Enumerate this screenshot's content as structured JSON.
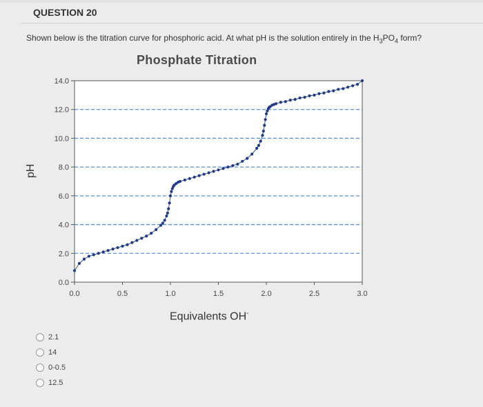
{
  "question": {
    "title": "QUESTION 20",
    "text_before": "Shown below is the titration curve for phosphoric acid. At what pH is the solution entirely in the H",
    "sub1": "3",
    "mid": "PO",
    "sub2": "4",
    "text_after": " form?"
  },
  "chart_data": {
    "type": "scatter",
    "title": "Phosphate Titration",
    "xlabel": "Equivalents OH",
    "ylabel": "pH",
    "xlim": [
      0,
      3
    ],
    "ylim": [
      0,
      14
    ],
    "xticks": [
      "0.0",
      "0.5",
      "1.0",
      "1.5",
      "2.0",
      "2.5",
      "3.0"
    ],
    "yticks": [
      "0.0",
      "2.0",
      "4.0",
      "6.0",
      "8.0",
      "10.0",
      "12.0",
      "14.0"
    ],
    "grid": "horizontal dashed",
    "series": [
      {
        "color": "#1f3a8a",
        "x": [
          0.0,
          0.05,
          0.1,
          0.15,
          0.2,
          0.25,
          0.3,
          0.35,
          0.4,
          0.45,
          0.5,
          0.55,
          0.6,
          0.65,
          0.7,
          0.75,
          0.8,
          0.85,
          0.9,
          0.92,
          0.94,
          0.96,
          0.97,
          0.98,
          0.99,
          1.0,
          1.01,
          1.02,
          1.03,
          1.04,
          1.06,
          1.08,
          1.1,
          1.15,
          1.2,
          1.25,
          1.3,
          1.35,
          1.4,
          1.45,
          1.5,
          1.55,
          1.6,
          1.65,
          1.7,
          1.75,
          1.8,
          1.85,
          1.9,
          1.92,
          1.94,
          1.96,
          1.97,
          1.98,
          1.99,
          2.0,
          2.01,
          2.02,
          2.03,
          2.04,
          2.06,
          2.08,
          2.1,
          2.15,
          2.2,
          2.25,
          2.3,
          2.35,
          2.4,
          2.45,
          2.5,
          2.55,
          2.6,
          2.65,
          2.7,
          2.75,
          2.8,
          2.85,
          2.9,
          2.95,
          3.0
        ],
        "y": [
          0.8,
          1.3,
          1.6,
          1.8,
          1.9,
          2.0,
          2.1,
          2.2,
          2.3,
          2.4,
          2.5,
          2.6,
          2.75,
          2.9,
          3.05,
          3.2,
          3.4,
          3.65,
          3.95,
          4.1,
          4.3,
          4.6,
          4.8,
          5.1,
          5.5,
          6.0,
          6.3,
          6.5,
          6.65,
          6.75,
          6.85,
          6.95,
          7.0,
          7.1,
          7.2,
          7.3,
          7.4,
          7.5,
          7.6,
          7.7,
          7.8,
          7.9,
          8.0,
          8.1,
          8.2,
          8.4,
          8.6,
          8.9,
          9.3,
          9.5,
          9.8,
          10.2,
          10.5,
          10.9,
          11.3,
          11.7,
          11.9,
          12.05,
          12.15,
          12.2,
          12.3,
          12.35,
          12.4,
          12.5,
          12.55,
          12.65,
          12.7,
          12.8,
          12.85,
          12.95,
          13.0,
          13.1,
          13.15,
          13.25,
          13.3,
          13.4,
          13.45,
          13.55,
          13.65,
          13.75,
          14.0
        ]
      }
    ]
  },
  "options": [
    {
      "label": "2.1"
    },
    {
      "label": "14"
    },
    {
      "label": "0-0.5"
    },
    {
      "label": "12.5"
    }
  ]
}
